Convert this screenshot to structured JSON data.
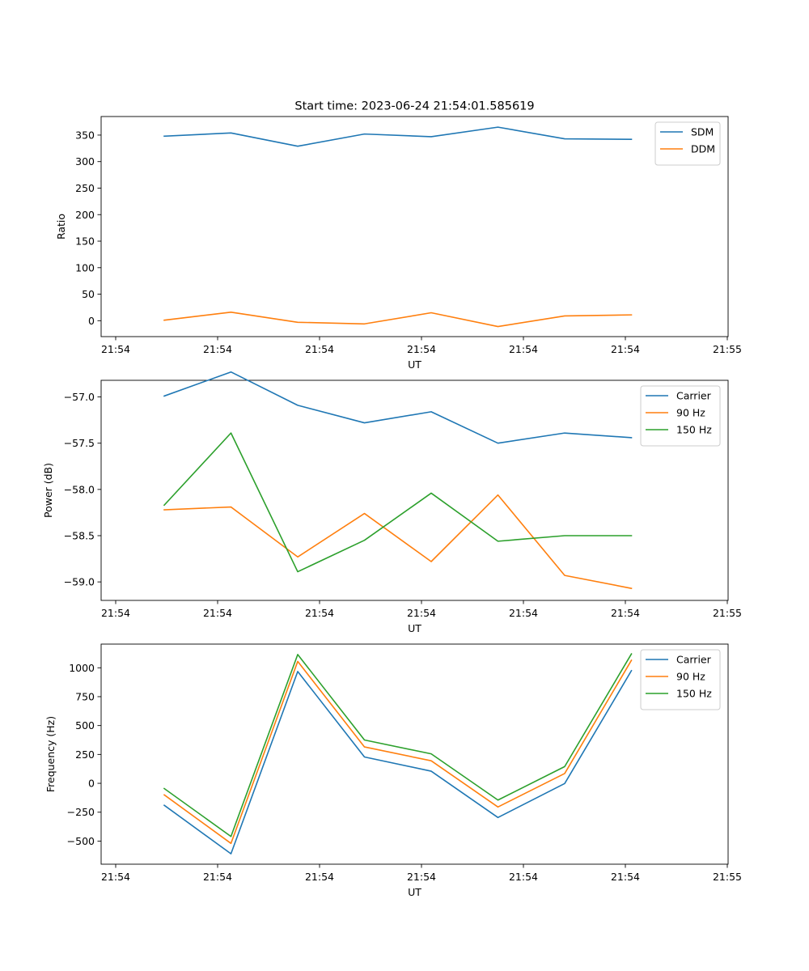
{
  "figure": {
    "title": "Start time: 2023-06-24 21:54:01.585619"
  },
  "chart_data": [
    {
      "type": "line",
      "title": "Start time: 2023-06-24 21:54:01.585619",
      "xlabel": "UT",
      "ylabel": "Ratio",
      "x_tick_labels": [
        "21:54",
        "21:54",
        "21:54",
        "21:54",
        "21:54",
        "21:54",
        "21:55"
      ],
      "yticks": [
        0,
        50,
        100,
        150,
        200,
        250,
        300,
        350
      ],
      "ylim": [
        -30,
        385
      ],
      "grid": false,
      "legend": "upper right",
      "series": [
        {
          "name": "SDM",
          "color": "#1f77b4",
          "values": [
            348,
            354,
            329,
            352,
            347,
            365,
            343,
            342
          ]
        },
        {
          "name": "DDM",
          "color": "#ff7f0e",
          "values": [
            1,
            16,
            -3,
            -6,
            15,
            -11,
            9,
            11
          ]
        }
      ]
    },
    {
      "type": "line",
      "title": "",
      "xlabel": "UT",
      "ylabel": "Power (dB)",
      "x_tick_labels": [
        "21:54",
        "21:54",
        "21:54",
        "21:54",
        "21:54",
        "21:54",
        "21:55"
      ],
      "yticks": [
        -57.0,
        -57.5,
        -58.0,
        -58.5,
        -59.0
      ],
      "ytick_labels": [
        "−57.0",
        "−57.5",
        "−58.0",
        "−58.5",
        "−59.0"
      ],
      "ylim": [
        -59.2,
        -56.82
      ],
      "grid": false,
      "legend": "upper right",
      "series": [
        {
          "name": "Carrier",
          "color": "#1f77b4",
          "values": [
            -56.99,
            -56.73,
            -57.09,
            -57.28,
            -57.16,
            -57.5,
            -57.39,
            -57.44
          ]
        },
        {
          "name": "90 Hz",
          "color": "#ff7f0e",
          "values": [
            -58.22,
            -58.19,
            -58.73,
            -58.26,
            -58.78,
            -58.06,
            -58.93,
            -59.07
          ]
        },
        {
          "name": "150 Hz",
          "color": "#2ca02c",
          "values": [
            -58.17,
            -57.39,
            -58.89,
            -58.55,
            -58.04,
            -58.56,
            -58.5,
            -58.5
          ]
        }
      ]
    },
    {
      "type": "line",
      "title": "",
      "xlabel": "UT",
      "ylabel": "Frequency (Hz)",
      "x_tick_labels": [
        "21:54",
        "21:54",
        "21:54",
        "21:54",
        "21:54",
        "21:54",
        "21:55"
      ],
      "yticks": [
        -500,
        -250,
        0,
        250,
        500,
        750,
        1000
      ],
      "ytick_labels": [
        "−500",
        "−250",
        "0",
        "250",
        "500",
        "750",
        "1000"
      ],
      "ylim": [
        -700,
        1205
      ],
      "grid": false,
      "legend": "upper right",
      "series": [
        {
          "name": "Carrier",
          "color": "#1f77b4",
          "values": [
            -190,
            -610,
            968,
            228,
            105,
            -296,
            -2,
            975
          ]
        },
        {
          "name": "90 Hz",
          "color": "#ff7f0e",
          "values": [
            -100,
            -520,
            1055,
            315,
            195,
            -205,
            85,
            1065
          ]
        },
        {
          "name": "150 Hz",
          "color": "#2ca02c",
          "values": [
            -45,
            -460,
            1115,
            375,
            255,
            -145,
            145,
            1120
          ]
        }
      ]
    }
  ]
}
